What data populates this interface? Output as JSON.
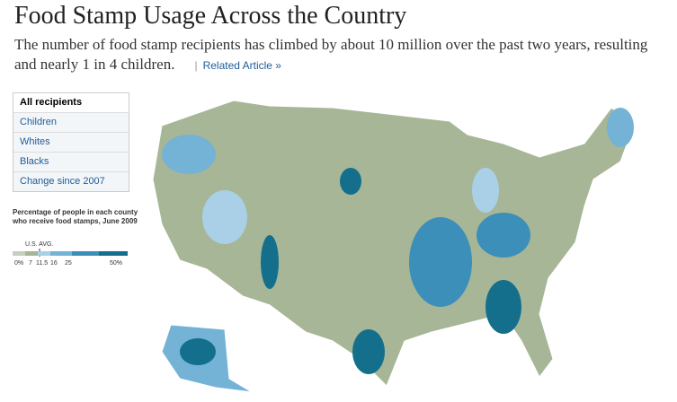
{
  "header": {
    "title": "Food Stamp Usage Across the Country",
    "subtitle_line1": "The number of food stamp recipients has climbed by about 10 million over the past two years, resulting",
    "subtitle_line2": "and nearly 1 in 4 children.",
    "separator": "|",
    "link": "Related Article »"
  },
  "tabs": [
    "All recipients",
    "Children",
    "Whites",
    "Blacks",
    "Change since 2007"
  ],
  "legend": {
    "title": "Percentage of people in each county who receive food stamps, June 2009",
    "marker": "U.S. AVG.",
    "ticks": [
      "0%",
      "7",
      "11.5",
      "16",
      "25",
      "50%"
    ],
    "colors": [
      "#c8cfbc",
      "#a7b696",
      "#a9d0e6",
      "#74b3d6",
      "#3b8fb8",
      "#146f8c"
    ]
  }
}
